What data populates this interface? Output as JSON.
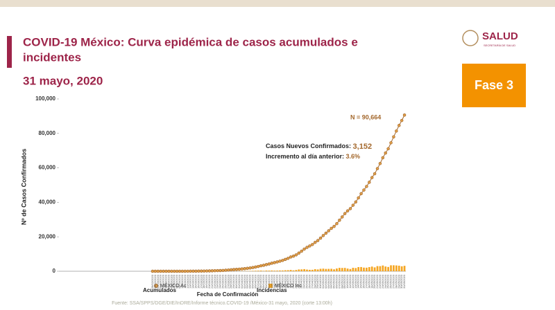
{
  "header": {
    "logo": "SALUD",
    "logo_sub": "SECRETARÍA DE SALUD",
    "phase": "Fase 3"
  },
  "chart_data": {
    "type": "line-bar",
    "title": "COVID-19 México: Curva epidémica de casos acumulados e incidentes",
    "subtitle": "31 mayo, 2020",
    "x_label": "Fecha de Confirmación",
    "y_label": "Nº de Casos Confirmados",
    "source": "Fuente: SSA/SPPS/DGE/DIE/InDRE/Informe técnico.COVID-19 /México-31 mayo, 2020 (corte 13:00h)",
    "annotations": {
      "total": "N = 90,664",
      "new_label": "Casos Nuevos Confirmados:",
      "new_value": "3,152",
      "inc_label": "Incremento al día anterior:",
      "inc_value": "3.6%",
      "acc_label": "Acumulados",
      "inc_series_label": "Incidencias"
    },
    "categories": [
      "28/02/2020",
      "29/02/2020",
      "01/03/2020",
      "02/03/2020",
      "03/03/2020",
      "04/03/2020",
      "05/03/2020",
      "06/03/2020",
      "07/03/2020",
      "08/03/2020",
      "09/03/2020",
      "10/03/2020",
      "11/03/2020",
      "12/03/2020",
      "13/03/2020",
      "14/03/2020",
      "15/03/2020",
      "16/03/2020",
      "17/03/2020",
      "18/03/2020",
      "19/03/2020",
      "20/03/2020",
      "21/03/2020",
      "22/03/2020",
      "23/03/2020",
      "24/03/2020",
      "25/03/2020",
      "26/03/2020",
      "27/03/2020",
      "28/03/2020",
      "29/03/2020",
      "30/03/2020",
      "31/03/2020",
      "01/04/2020",
      "02/04/2020",
      "03/04/2020",
      "04/04/2020",
      "05/04/2020",
      "06/04/2020",
      "07/04/2020",
      "08/04/2020",
      "09/04/2020",
      "10/04/2020",
      "11/04/2020",
      "12/04/2020",
      "13/04/2020",
      "14/04/2020",
      "15/04/2020",
      "16/04/2020",
      "17/04/2020",
      "18/04/2020",
      "19/04/2020",
      "20/04/2020",
      "21/04/2020",
      "22/04/2020",
      "23/04/2020",
      "24/04/2020",
      "25/04/2020",
      "26/04/2020",
      "27/04/2020",
      "28/04/2020",
      "29/04/2020",
      "30/04/2020",
      "01/05/2020",
      "02/05/2020",
      "03/05/2020",
      "04/05/2020",
      "05/05/2020",
      "06/05/2020",
      "07/05/2020",
      "08/05/2020",
      "09/05/2020",
      "10/05/2020",
      "11/05/2020",
      "12/05/2020",
      "13/05/2020",
      "14/05/2020",
      "15/05/2020",
      "16/05/2020",
      "17/05/2020",
      "18/05/2020",
      "19/05/2020",
      "20/05/2020",
      "21/05/2020",
      "22/05/2020",
      "23/05/2020",
      "24/05/2020",
      "25/05/2020",
      "26/05/2020",
      "27/05/2020",
      "28/05/2020",
      "29/05/2020",
      "30/05/2020",
      "31/05/2020"
    ],
    "series": [
      {
        "name": "MÉXICO Ac",
        "color": "#a3672b",
        "marker": "#e0a04a",
        "kind": "line",
        "values": [
          1,
          4,
          5,
          5,
          5,
          5,
          5,
          6,
          7,
          7,
          7,
          7,
          11,
          12,
          26,
          41,
          53,
          82,
          93,
          118,
          164,
          203,
          251,
          316,
          367,
          405,
          475,
          585,
          717,
          848,
          993,
          1094,
          1215,
          1378,
          1510,
          1688,
          1890,
          2143,
          2439,
          2785,
          3181,
          3441,
          3844,
          4219,
          4661,
          5014,
          5399,
          5847,
          6297,
          6875,
          7497,
          8261,
          8772,
          9501,
          10544,
          11633,
          12872,
          13842,
          14677,
          15529,
          16752,
          17799,
          19224,
          20739,
          22088,
          23471,
          24905,
          26025,
          27634,
          29616,
          31522,
          33460,
          35022,
          36327,
          38324,
          40186,
          42595,
          45032,
          47144,
          49219,
          51633,
          54346,
          56594,
          59567,
          62527,
          65856,
          68620,
          71105,
          74560,
          78023,
          81400,
          84627,
          87512,
          90664
        ]
      },
      {
        "name": "MÉXICO Inc",
        "color": "#f5a623",
        "kind": "bar",
        "values": [
          1,
          3,
          1,
          0,
          0,
          0,
          0,
          1,
          1,
          0,
          0,
          0,
          4,
          1,
          14,
          15,
          12,
          29,
          11,
          25,
          46,
          39,
          48,
          65,
          51,
          38,
          70,
          110,
          132,
          131,
          145,
          101,
          121,
          163,
          132,
          178,
          202,
          253,
          296,
          346,
          396,
          260,
          403,
          375,
          442,
          353,
          385,
          448,
          450,
          578,
          622,
          764,
          511,
          729,
          1043,
          1089,
          1239,
          970,
          835,
          852,
          1223,
          1047,
          1425,
          1515,
          1349,
          1383,
          1434,
          1120,
          1609,
          1982,
          1906,
          1938,
          1562,
          1305,
          1997,
          1862,
          2409,
          2437,
          2112,
          2075,
          2414,
          2713,
          2248,
          2973,
          2960,
          3329,
          2764,
          2485,
          3455,
          3463,
          3377,
          3227,
          2885,
          3152
        ]
      }
    ],
    "ylim": [
      0,
      100000
    ],
    "yticks": [
      0,
      {
        "value": 20000,
        "label": "20,000"
      },
      {
        "value": 40000,
        "label": "40,000"
      },
      {
        "value": 60000,
        "label": "60,000"
      },
      {
        "value": 80000,
        "label": "80,000"
      },
      {
        "value": 100000,
        "label": "100,000"
      }
    ],
    "grid": false
  }
}
